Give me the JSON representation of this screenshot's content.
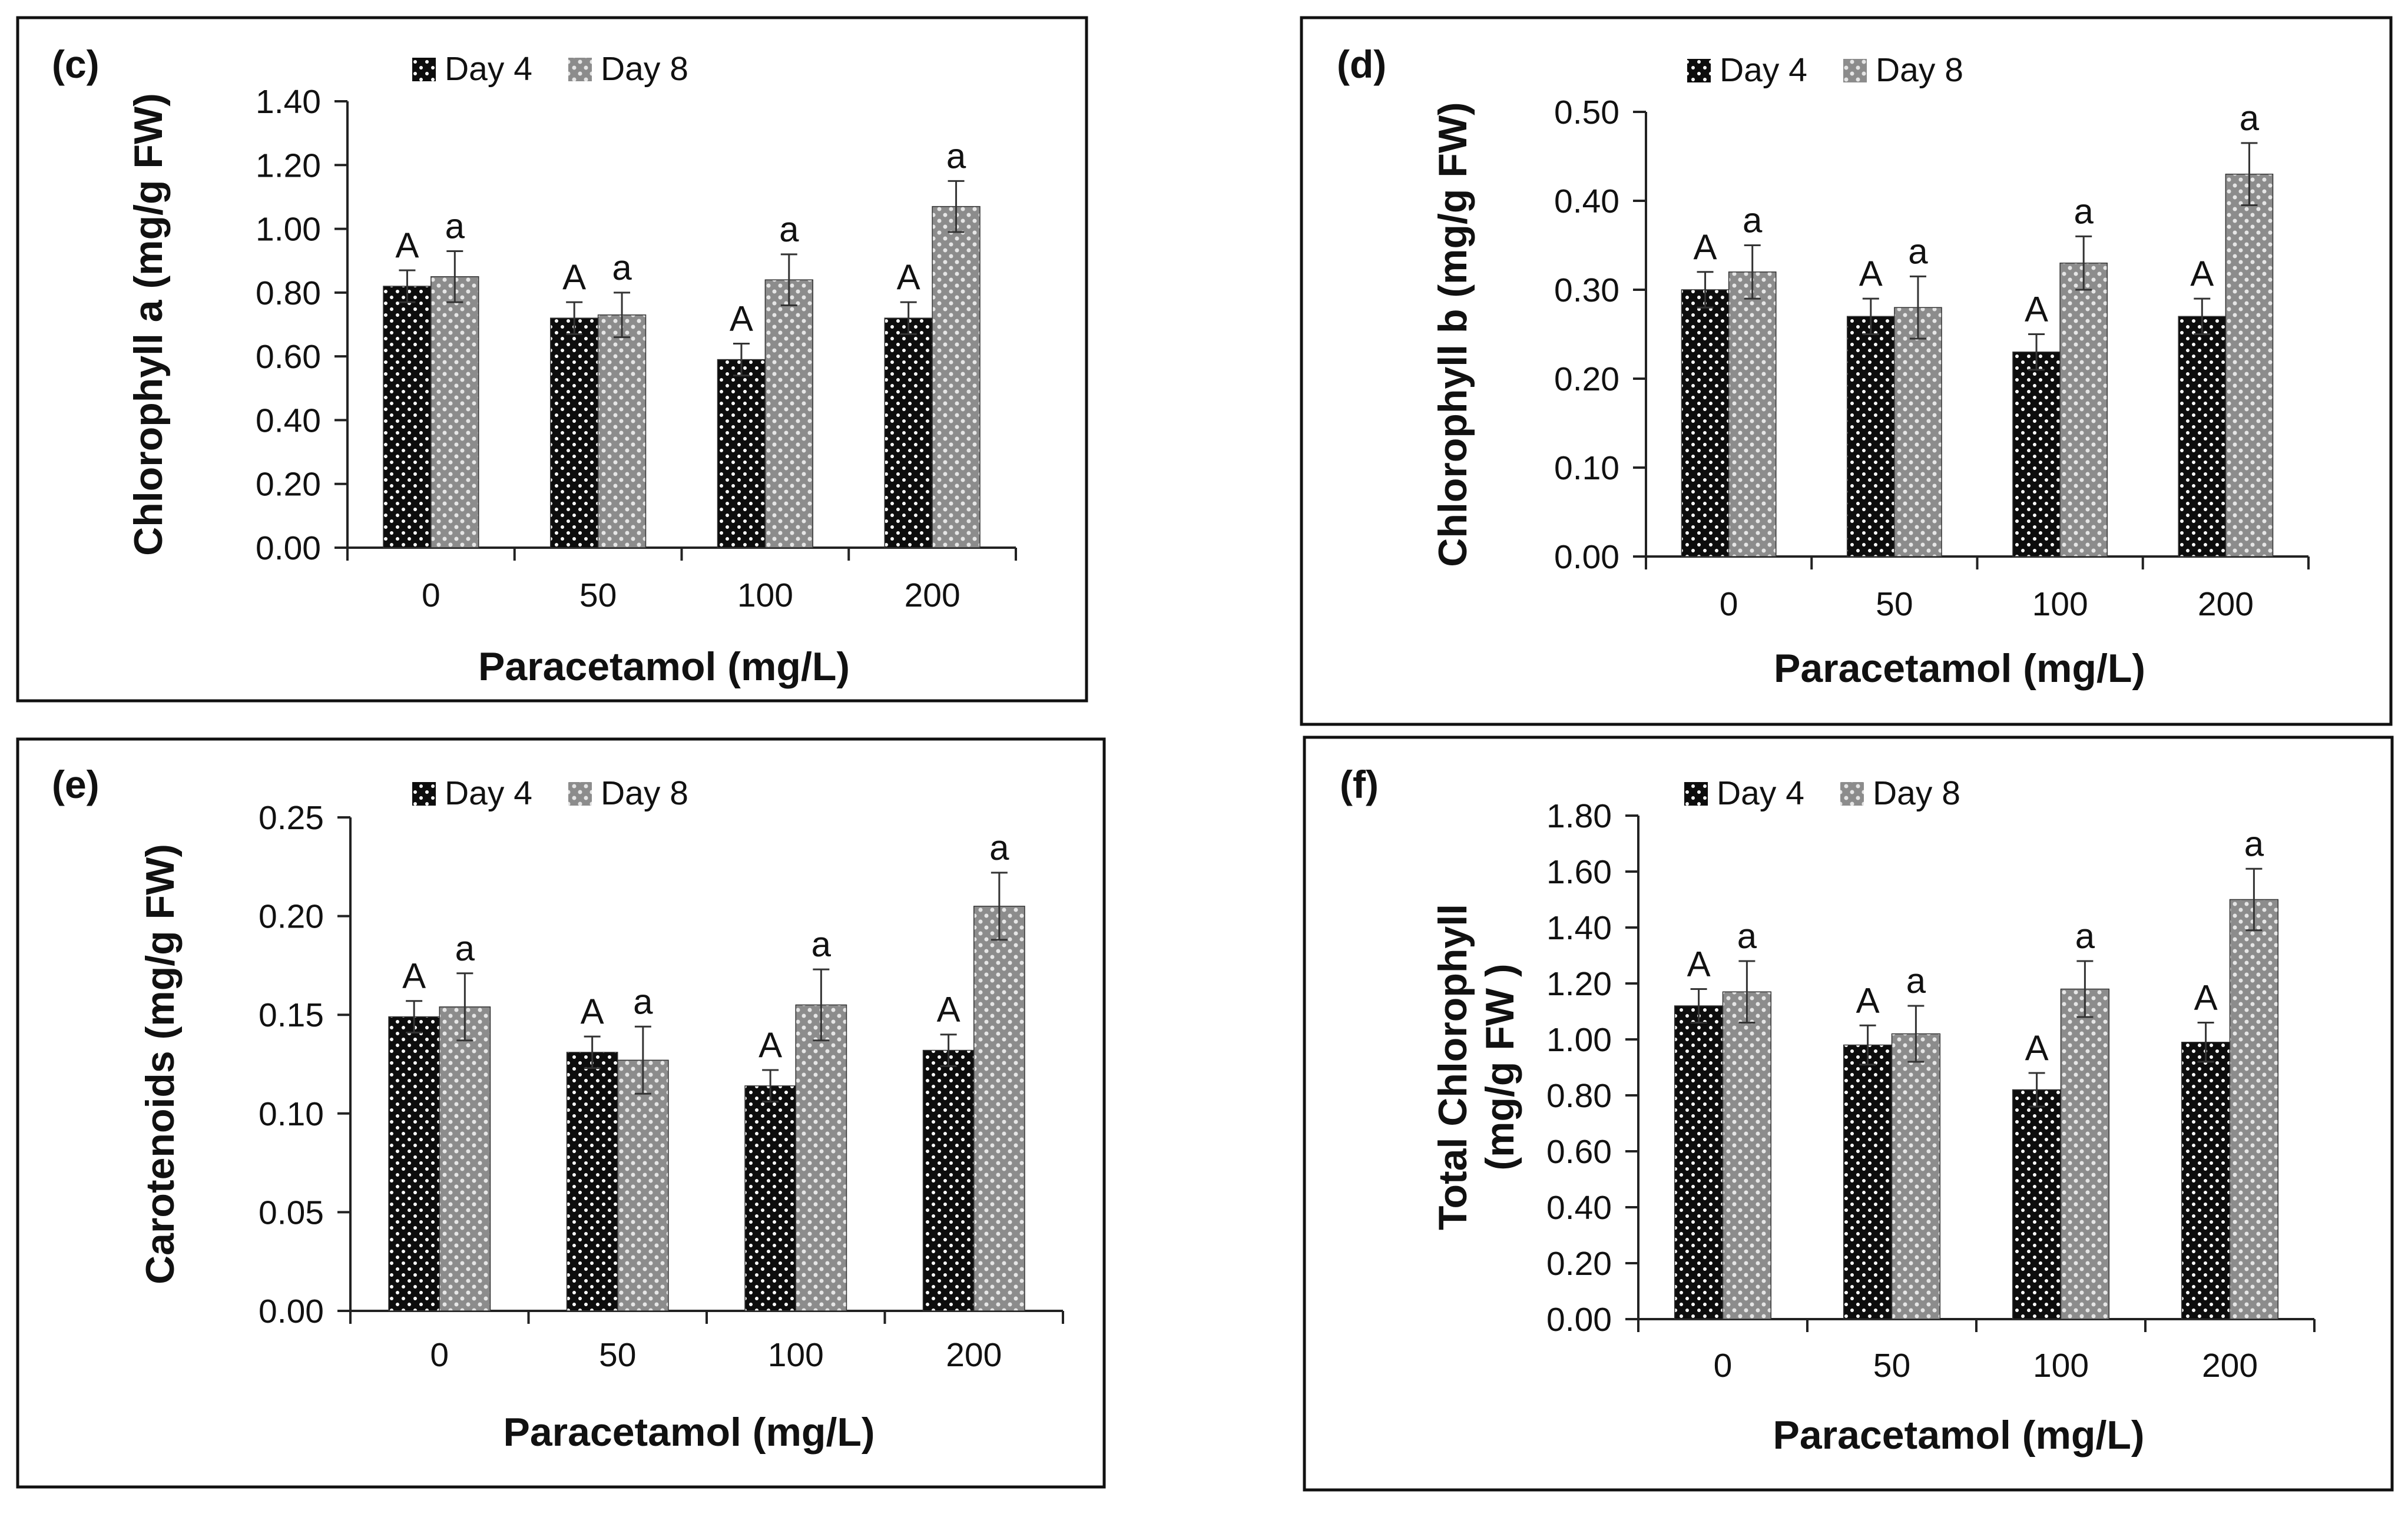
{
  "patterns": {
    "day4_bg": "#0d0d0d",
    "day4_dot": "#ffffff",
    "day8_bg": "#8c8c8c",
    "day8_dot": "#e6e6e6",
    "axis": "#222222",
    "border": "#111111"
  },
  "legend": {
    "day4": "Day 4",
    "day8": "Day 8"
  },
  "x_title": "Paracetamol (mg/L)",
  "chart_data": [
    {
      "type": "bar",
      "panel": "(c)",
      "ylabel": "Chlorophyll a (mg/g FW)",
      "xlabel": "Paracetamol (mg/L)",
      "categories": [
        "0",
        "50",
        "100",
        "200"
      ],
      "ylim": [
        0,
        1.4
      ],
      "yticks": [
        "0.00",
        "0.20",
        "0.40",
        "0.60",
        "0.80",
        "1.00",
        "1.20",
        "1.40"
      ],
      "series": [
        {
          "name": "Day 4",
          "values": [
            0.82,
            0.72,
            0.59,
            0.72
          ],
          "errors": [
            0.05,
            0.05,
            0.05,
            0.05
          ],
          "labels": [
            "A",
            "A",
            "A",
            "A"
          ]
        },
        {
          "name": "Day 8",
          "values": [
            0.85,
            0.73,
            0.84,
            1.07
          ],
          "errors": [
            0.08,
            0.07,
            0.08,
            0.08
          ],
          "labels": [
            "a",
            "a",
            "a",
            "a"
          ]
        }
      ]
    },
    {
      "type": "bar",
      "panel": "(d)",
      "ylabel": "Chlorophyll b (mg/g FW)",
      "xlabel": "Paracetamol (mg/L)",
      "categories": [
        "0",
        "50",
        "100",
        "200"
      ],
      "ylim": [
        0,
        0.5
      ],
      "yticks": [
        "0.00",
        "0.10",
        "0.20",
        "0.30",
        "0.40",
        "0.50"
      ],
      "series": [
        {
          "name": "Day 4",
          "values": [
            0.3,
            0.27,
            0.23,
            0.27
          ],
          "errors": [
            0.02,
            0.02,
            0.02,
            0.02
          ],
          "labels": [
            "A",
            "A",
            "A",
            "A"
          ]
        },
        {
          "name": "Day 8",
          "values": [
            0.32,
            0.28,
            0.33,
            0.43
          ],
          "errors": [
            0.03,
            0.035,
            0.03,
            0.035
          ],
          "labels": [
            "a",
            "a",
            "a",
            "a"
          ]
        }
      ]
    },
    {
      "type": "bar",
      "panel": "(e)",
      "ylabel": "Carotenoids (mg/g FW)",
      "xlabel": "Paracetamol (mg/L)",
      "categories": [
        "0",
        "50",
        "100",
        "200"
      ],
      "ylim": [
        0,
        0.25
      ],
      "yticks": [
        "0.00",
        "0.05",
        "0.10",
        "0.15",
        "0.20",
        "0.25"
      ],
      "series": [
        {
          "name": "Day 4",
          "values": [
            0.149,
            0.131,
            0.114,
            0.132
          ],
          "errors": [
            0.008,
            0.008,
            0.008,
            0.008
          ],
          "labels": [
            "A",
            "A",
            "A",
            "A"
          ]
        },
        {
          "name": "Day 8",
          "values": [
            0.154,
            0.127,
            0.155,
            0.205
          ],
          "errors": [
            0.017,
            0.017,
            0.018,
            0.017
          ],
          "labels": [
            "a",
            "a",
            "a",
            "a"
          ]
        }
      ]
    },
    {
      "type": "bar",
      "panel": "(f)",
      "ylabel": "Total Chlorophyll (mg/g FW )",
      "ylabel_lines": [
        "Total Chlorophyll",
        "(mg/g FW )"
      ],
      "xlabel": "Paracetamol (mg/L)",
      "categories": [
        "0",
        "50",
        "100",
        "200"
      ],
      "ylim": [
        0,
        1.8
      ],
      "yticks": [
        "0.00",
        "0.20",
        "0.40",
        "0.60",
        "0.80",
        "1.00",
        "1.20",
        "1.40",
        "1.60",
        "1.80"
      ],
      "series": [
        {
          "name": "Day 4",
          "values": [
            1.12,
            0.98,
            0.82,
            0.99
          ],
          "errors": [
            0.06,
            0.07,
            0.06,
            0.07
          ],
          "labels": [
            "A",
            "A",
            "A",
            "A"
          ]
        },
        {
          "name": "Day 8",
          "values": [
            1.17,
            1.02,
            1.18,
            1.5
          ],
          "errors": [
            0.11,
            0.1,
            0.1,
            0.11
          ],
          "labels": [
            "a",
            "a",
            "a",
            "a"
          ]
        }
      ]
    }
  ]
}
